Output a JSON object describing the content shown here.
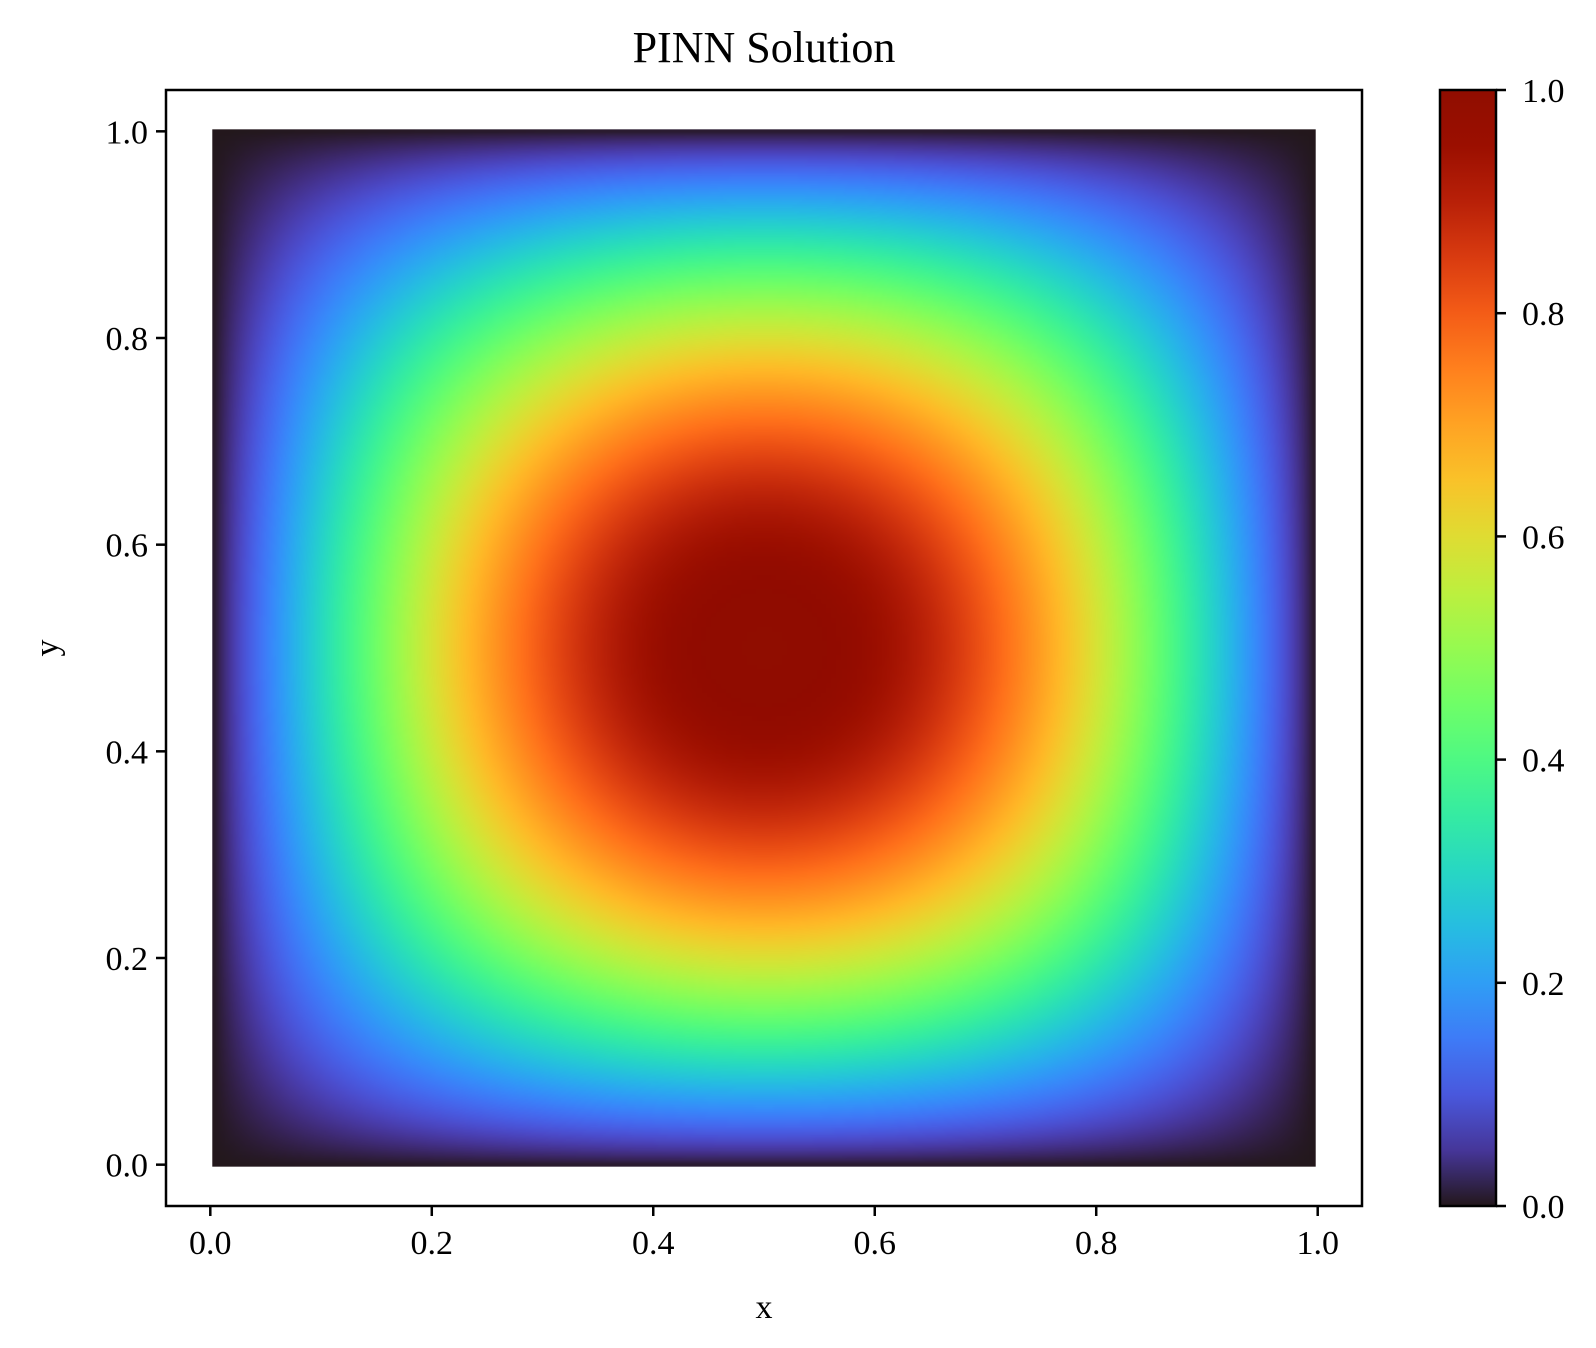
{
  "chart_data": {
    "type": "heatmap",
    "title": "PINN Solution",
    "xlabel": "x",
    "ylabel": "y",
    "xlim": [
      -0.04,
      1.04
    ],
    "ylim": [
      -0.04,
      1.04
    ],
    "xticks": [
      0.0,
      0.2,
      0.4,
      0.6,
      0.8,
      1.0
    ],
    "yticks": [
      0.0,
      0.2,
      0.4,
      0.6,
      0.8,
      1.0
    ],
    "xtick_labels": [
      "0.0",
      "0.2",
      "0.4",
      "0.6",
      "0.8",
      "1.0"
    ],
    "ytick_labels": [
      "0.0",
      "0.2",
      "0.4",
      "0.6",
      "0.8",
      "1.0"
    ],
    "field": "u(x, y) = sin(pi x) * sin(pi y)",
    "grid_points_per_axis": 100,
    "domain": [
      [
        0.0,
        1.0
      ],
      [
        0.0,
        1.0
      ]
    ],
    "value_range": [
      0.0,
      1.0
    ],
    "peak": {
      "x": 0.5,
      "y": 0.5,
      "value": 1.0
    },
    "colormap": "turbo",
    "colorbar": {
      "range": [
        0.0,
        1.0
      ],
      "ticks": [
        0.0,
        0.2,
        0.4,
        0.6,
        0.8,
        1.0
      ],
      "tick_labels": [
        "0.0",
        "0.2",
        "0.4",
        "0.6",
        "0.8",
        "1.0"
      ],
      "placement": "right"
    },
    "grid": false,
    "legend": "none"
  }
}
